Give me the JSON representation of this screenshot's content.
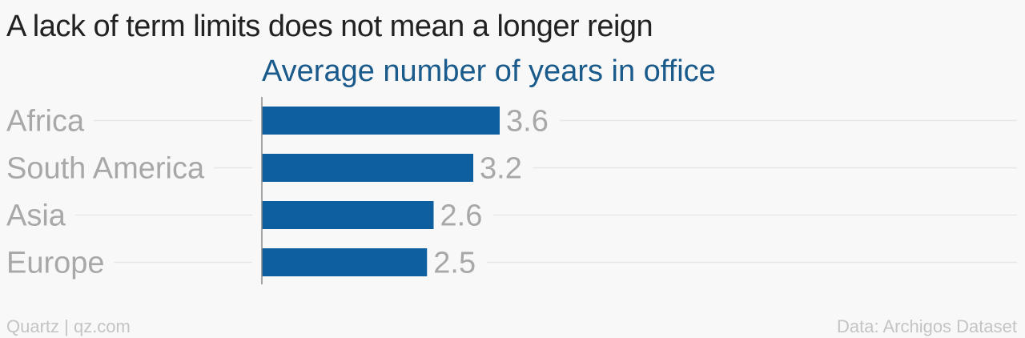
{
  "chart_data": {
    "type": "bar",
    "orientation": "horizontal",
    "title": "A lack of term limits does not mean a longer reign",
    "subtitle": "Average number of years in office",
    "categories": [
      "Africa",
      "South America",
      "Asia",
      "Europe"
    ],
    "values": [
      3.6,
      3.2,
      2.6,
      2.5
    ],
    "value_labels": [
      "3.6",
      "3.2",
      "2.6",
      "2.5"
    ],
    "grid": true,
    "bar_color": "#0e5f9f",
    "subtitle_color": "#1a5b8c"
  },
  "footer": {
    "source_left": "Quartz | qz.com",
    "source_right": "Data: Archigos Dataset"
  }
}
